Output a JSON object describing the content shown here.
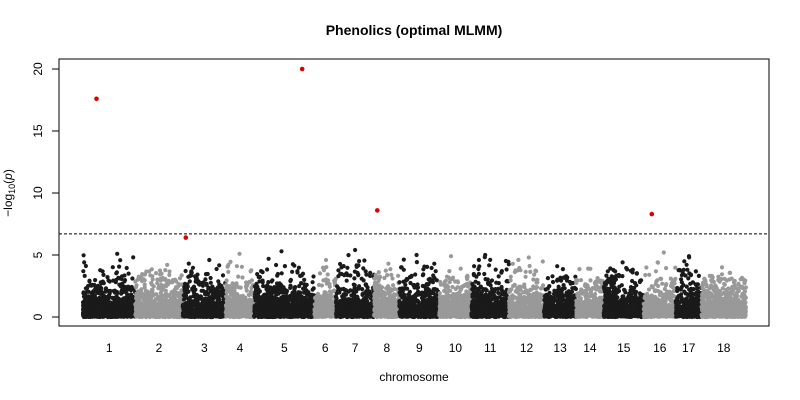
{
  "chart_data": {
    "type": "scatter",
    "subtype": "manhattan",
    "title": "Phenolics (optimal MLMM)",
    "xlabel": "chromosome",
    "ylabel_prefix": "−log",
    "ylabel_sub": "10",
    "ylabel_var": "p",
    "ylim": [
      0,
      21
    ],
    "yticks": [
      0,
      5,
      10,
      15,
      20
    ],
    "threshold": 6.7,
    "grid": false,
    "chromosomes": [
      "1",
      "2",
      "3",
      "4",
      "5",
      "6",
      "7",
      "8",
      "9",
      "10",
      "11",
      "12",
      "13",
      "14",
      "15",
      "16",
      "17",
      "18"
    ],
    "chromosome_lengths_mb": [
      85,
      77,
      70,
      46,
      98,
      35,
      62,
      41,
      65,
      52,
      61,
      57,
      52,
      45,
      65,
      52,
      42,
      72
    ],
    "chromosome_peak_log10p": [
      5.1,
      4.2,
      4.6,
      5.1,
      5.3,
      4.6,
      5.4,
      4.3,
      5.0,
      4.9,
      5.0,
      4.8,
      4.1,
      3.9,
      4.4,
      5.2,
      4.9,
      4.0
    ],
    "colors": {
      "odd": "#1a1a1a",
      "even": "#999999",
      "significant": "#dd0000",
      "threshold": "#000000"
    },
    "significant_points": [
      {
        "chromosome": "1",
        "position_mb": 22,
        "log10p": 17.6
      },
      {
        "chromosome": "3",
        "position_mb": 5,
        "log10p": 6.4
      },
      {
        "chromosome": "5",
        "position_mb": 78,
        "log10p": 20.0
      },
      {
        "chromosome": "8",
        "position_mb": 5,
        "log10p": 8.6
      },
      {
        "chromosome": "16",
        "position_mb": 13,
        "log10p": 8.3
      }
    ]
  }
}
